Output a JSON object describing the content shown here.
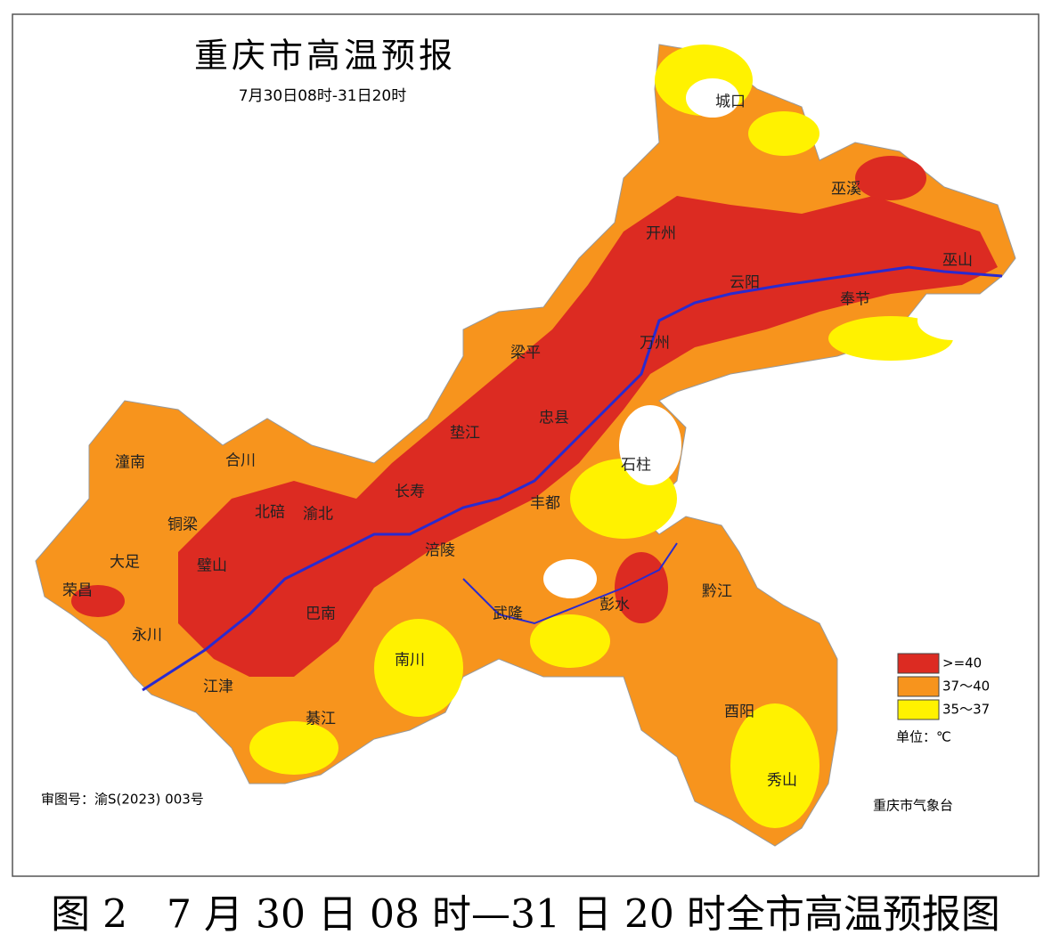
{
  "header": {
    "title": "重庆市高温预报",
    "subtitle": "7月30日08时-31日20时"
  },
  "districts": [
    "城口",
    "巫溪",
    "开州",
    "巫山",
    "云阳",
    "奉节",
    "梁平",
    "万州",
    "忠县",
    "垫江",
    "石柱",
    "潼南",
    "合川",
    "长寿",
    "丰都",
    "铜梁",
    "璧山",
    "北碚",
    "渝北",
    "涪陵",
    "大足",
    "荣昌",
    "巴南",
    "黔江",
    "彭水",
    "武隆",
    "永川",
    "南川",
    "江津",
    "綦江",
    "酉阳",
    "秀山"
  ],
  "legend": {
    "items": [
      {
        "label": ">=40",
        "color": "#dc2b22"
      },
      {
        "label": "37～40",
        "color": "#f7941d"
      },
      {
        "label": "35～37",
        "color": "#fff200"
      }
    ],
    "unit": "单位：℃"
  },
  "footer": {
    "approval": "审图号：渝S(2023) 003号",
    "source": "重庆市气象台"
  },
  "caption": "图 2　7 月 30 日 08 时—31 日 20 时全市高温预报图"
}
